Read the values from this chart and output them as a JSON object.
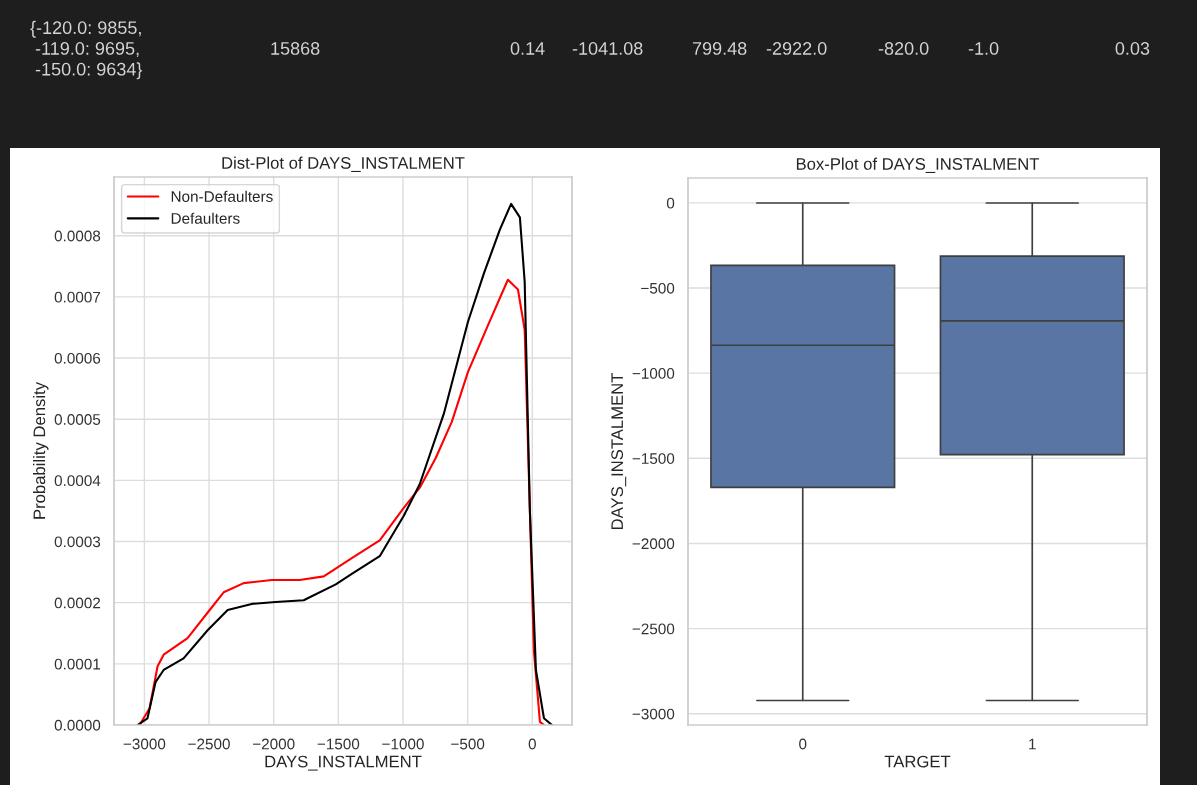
{
  "chart_data": [
    {
      "type": "line",
      "title": "Dist-Plot of DAYS_INSTALMENT",
      "xlabel": "DAYS_INSTALMENT",
      "ylabel": "Probability Density",
      "annotations": [
        "{-120.0: 9855,\n -119.0: 9695,\n -150.0: 9634}",
        "15868",
        "0.14",
        "-1041.08",
        "799.48",
        "-2922.0",
        "-820.0",
        "-1.0",
        "0.03"
      ],
      "series": [
        {
          "name": "Non-Defaulters",
          "color": "#ff0000",
          "x": [
            -3037,
            -2960,
            -2898,
            -2851,
            -2666,
            -2495,
            -2387,
            -2232,
            -2015,
            -1799,
            -1613,
            -1396,
            -1180,
            -994,
            -870,
            -746,
            -622,
            -498,
            -344,
            -189,
            -111,
            -59,
            -19,
            12,
            59,
            90
          ],
          "values": [
            0,
            2.75e-05,
            9.6e-05,
            0.000115,
            0.000142,
            0.000188,
            0.000217,
            0.000232,
            0.000237,
            0.000237,
            0.000243,
            0.000273,
            0.000302,
            0.000355,
            0.000388,
            0.000437,
            0.000496,
            0.000577,
            0.000653,
            0.000728,
            0.000712,
            0.000646,
            0.000352,
            0.000122,
            5e-06,
            0
          ]
        },
        {
          "name": "Defaulters",
          "color": "#000000",
          "x": [
            -3053,
            -2976,
            -2914,
            -2851,
            -2697,
            -2511,
            -2356,
            -2170,
            -1985,
            -1768,
            -1520,
            -1396,
            -1180,
            -994,
            -870,
            -684,
            -498,
            -375,
            -251,
            -164,
            -96,
            -59,
            -19,
            28,
            90,
            152
          ],
          "values": [
            0,
            1.1e-05,
            7e-05,
            9e-05,
            0.000109,
            0.000155,
            0.000188,
            0.000198,
            0.000201,
            0.000204,
            0.00023,
            0.000247,
            0.000276,
            0.000342,
            0.000394,
            0.000509,
            0.000659,
            0.000738,
            0.00081,
            0.000852,
            0.00083,
            0.000725,
            0.000352,
            9e-05,
            1.1e-05,
            0
          ]
        }
      ],
      "xlim": [
        -3235,
        307
      ],
      "xticks": [
        {
          "value": -3000,
          "label": "−3000"
        },
        {
          "value": -2500,
          "label": "−2500"
        },
        {
          "value": -2000,
          "label": "−2000"
        },
        {
          "value": -1500,
          "label": "−1500"
        },
        {
          "value": -1000,
          "label": "−1000"
        },
        {
          "value": -500,
          "label": "−500"
        },
        0
      ],
      "ylim": [
        0,
        0.000896
      ],
      "yticks": [
        {
          "value": 0,
          "label": "0.0000"
        },
        {
          "value": 0.0001,
          "label": "0.0001"
        },
        {
          "value": 0.0002,
          "label": "0.0002"
        },
        {
          "value": 0.0003,
          "label": "0.0003"
        },
        {
          "value": 0.0004,
          "label": "0.0004"
        },
        {
          "value": 0.0005,
          "label": "0.0005"
        },
        {
          "value": 0.0006,
          "label": "0.0006"
        },
        {
          "value": 0.0007,
          "label": "0.0007"
        },
        {
          "value": 0.0008,
          "label": "0.0008"
        }
      ],
      "grid": true,
      "legend": "top left",
      "line_style": "solid",
      "marker": "none"
    },
    {
      "type": "box",
      "title": "Box-Plot of DAYS_INSTALMENT",
      "xlabel": "TARGET",
      "ylabel": "DAYS_INSTALMENT",
      "categories": [
        "0",
        "1"
      ],
      "series": [
        {
          "color": "#5875a4",
          "boxes": [
            {
              "low": -2922,
              "q1": -1671,
              "median": -836,
              "q3": -367,
              "high": -1
            },
            {
              "low": -2922,
              "q1": -1478,
              "median": -693,
              "q3": -313,
              "high": -1
            }
          ]
        }
      ],
      "ylim": [
        -3066,
        146
      ],
      "yticks": [
        {
          "value": -3000,
          "label": "−3000"
        },
        {
          "value": -2500,
          "label": "−2500"
        },
        {
          "value": -2000,
          "label": "−2000"
        },
        {
          "value": -1500,
          "label": "−1500"
        },
        {
          "value": -1000,
          "label": "−1000"
        },
        {
          "value": -500,
          "label": "−500"
        },
        0
      ],
      "grid": "y"
    }
  ]
}
